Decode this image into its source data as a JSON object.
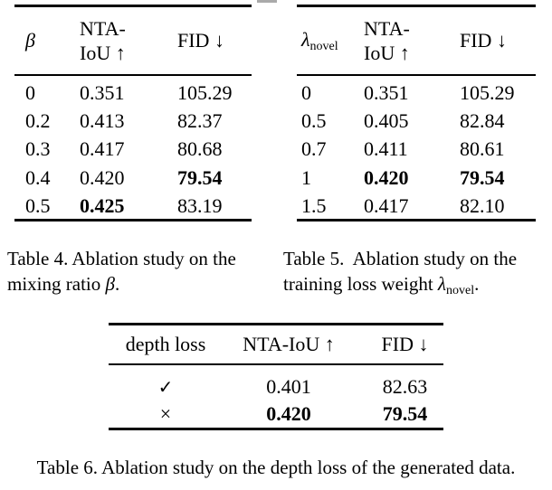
{
  "page": {
    "background": "#ffffff",
    "text_color": "#000000",
    "rule_color": "#000000",
    "artifact_color": "#aaaaaa"
  },
  "table4": {
    "header": {
      "col1": "β",
      "col2_line1": "NTA-",
      "col2_line2": "IoU ↑",
      "col3": "FID ↓"
    },
    "rows": [
      {
        "c1": "0",
        "c2": "0.351",
        "c2_bold": false,
        "c3": "105.29",
        "c3_bold": false
      },
      {
        "c1": "0.2",
        "c2": "0.413",
        "c2_bold": false,
        "c3": "82.37",
        "c3_bold": false
      },
      {
        "c1": "0.3",
        "c2": "0.417",
        "c2_bold": false,
        "c3": "80.68",
        "c3_bold": false
      },
      {
        "c1": "0.4",
        "c2": "0.420",
        "c2_bold": false,
        "c3": "79.54",
        "c3_bold": true
      },
      {
        "c1": "0.5",
        "c2": "0.425",
        "c2_bold": true,
        "c3": "83.19",
        "c3_bold": false
      }
    ],
    "caption_line1": "Table 4. Ablation study on the",
    "caption_line2_text": "mixing ratio ",
    "caption_line2_symbol": "β",
    "caption_line2_end": "."
  },
  "table5": {
    "header": {
      "col1_symbol": "λ",
      "col1_subscript": "novel",
      "col2_line1": "NTA-",
      "col2_line2": "IoU ↑",
      "col3": "FID ↓"
    },
    "rows": [
      {
        "c1": "0",
        "c2": "0.351",
        "c2_bold": false,
        "c3": "105.29",
        "c3_bold": false
      },
      {
        "c1": "0.5",
        "c2": "0.405",
        "c2_bold": false,
        "c3": "82.84",
        "c3_bold": false
      },
      {
        "c1": "0.7",
        "c2": "0.411",
        "c2_bold": false,
        "c3": "80.61",
        "c3_bold": false
      },
      {
        "c1": "1",
        "c2": "0.420",
        "c2_bold": true,
        "c3": "79.54",
        "c3_bold": true
      },
      {
        "c1": "1.5",
        "c2": "0.417",
        "c2_bold": false,
        "c3": "82.10",
        "c3_bold": false
      }
    ],
    "caption_line1": "Table 5.  Ablation study on the",
    "caption_line2_text": "training loss weight ",
    "caption_line2_symbol": "λ",
    "caption_line2_subscript": "novel",
    "caption_line2_end": "."
  },
  "table6": {
    "header": {
      "col1": "depth loss",
      "col2": "NTA-IoU ↑",
      "col3": "FID ↓"
    },
    "rows": [
      {
        "c1": "✓",
        "c2": "0.401",
        "c2_bold": false,
        "c3": "82.63",
        "c3_bold": false
      },
      {
        "c1": "×",
        "c2": "0.420",
        "c2_bold": true,
        "c3": "79.54",
        "c3_bold": true
      }
    ],
    "caption": "Table 6. Ablation study on the depth loss of the generated data."
  }
}
